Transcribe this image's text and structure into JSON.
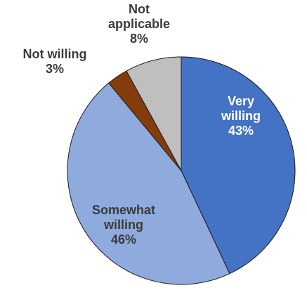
{
  "chart_data": {
    "type": "pie",
    "slices": [
      {
        "label": "Very willing",
        "value": 43,
        "color": "#4472c4",
        "label_color": "#ffffff",
        "label_lines": [
          "Very",
          "willing",
          "43%"
        ]
      },
      {
        "label": "Somewhat willing",
        "value": 46,
        "color": "#8faadc",
        "label_color": "#3a3a3a",
        "label_lines": [
          "Somewhat",
          "willing",
          "46%"
        ]
      },
      {
        "label": "Not willing",
        "value": 3,
        "color": "#843c0c",
        "label_color": "#3a3a3a",
        "label_lines": [
          "Not willing",
          "3%"
        ]
      },
      {
        "label": "Not applicable",
        "value": 8,
        "color": "#bfbfbf",
        "label_color": "#3a3a3a",
        "label_lines": [
          "Not",
          "applicable",
          "8%"
        ]
      }
    ],
    "start": "12 o'clock",
    "direction": "clockwise",
    "legend": "none"
  }
}
